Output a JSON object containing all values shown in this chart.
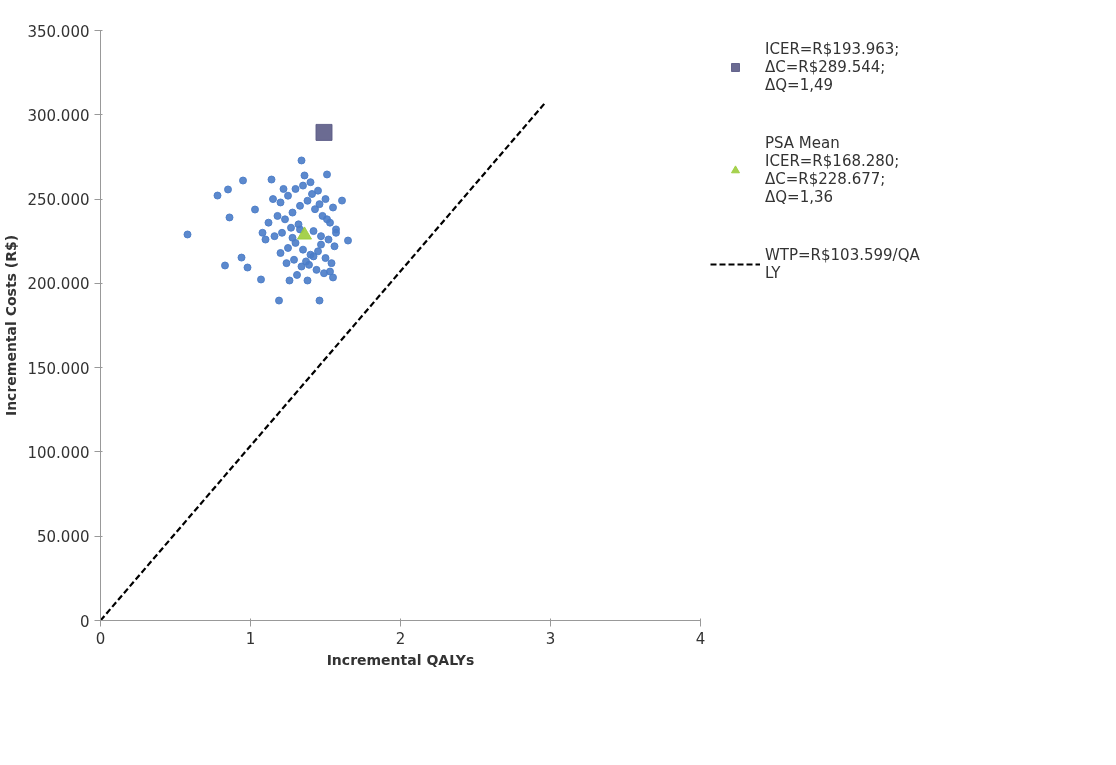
{
  "chart_data": {
    "type": "scatter",
    "xlabel": "Incremental QALYs",
    "ylabel": "Incremental Costs (R$)",
    "xlim": [
      0,
      4
    ],
    "xticks": [
      0,
      1,
      2,
      3,
      4
    ],
    "ylim": [
      0,
      350000
    ],
    "yticks": [
      {
        "value": 0,
        "label": "0"
      },
      {
        "value": 50000,
        "label": "50.000"
      },
      {
        "value": 100000,
        "label": "100.000"
      },
      {
        "value": 150000,
        "label": "150.000"
      },
      {
        "value": 200000,
        "label": "200.000"
      },
      {
        "value": 250000,
        "label": "250.000"
      },
      {
        "value": 300000,
        "label": "300.000"
      },
      {
        "value": 350000,
        "label": "350.000"
      }
    ],
    "grid": false,
    "legend": "right",
    "series": [
      {
        "type": "scatter",
        "marker": "circle",
        "color": "#4a7cc8",
        "x": [
          0.58,
          0.78,
          0.85,
          0.95,
          1.34,
          1.65,
          1.61,
          0.83,
          1.19,
          1.46,
          1.07,
          0.94,
          0.86,
          1.03,
          1.14,
          1.51,
          1.55,
          1.26,
          1.38,
          0.98,
          1.15,
          1.2,
          1.25,
          1.3,
          1.35,
          1.4,
          1.45,
          1.5,
          1.55,
          1.18,
          1.23,
          1.28,
          1.33,
          1.38,
          1.43,
          1.48,
          1.53,
          1.57,
          1.16,
          1.21,
          1.27,
          1.32,
          1.42,
          1.47,
          1.52,
          1.56,
          1.2,
          1.25,
          1.3,
          1.35,
          1.4,
          1.45,
          1.5,
          1.54,
          1.24,
          1.29,
          1.34,
          1.39,
          1.44,
          1.49,
          1.53,
          1.31,
          1.37,
          1.42,
          1.47,
          1.1,
          1.12,
          1.08,
          1.22,
          1.36,
          1.41,
          1.46,
          1.51,
          1.57,
          1.28,
          1.33
        ],
        "values": [
          229000,
          252100,
          255700,
          261000,
          272900,
          225400,
          249100,
          210600,
          189800,
          189800,
          202300,
          215300,
          239100,
          243800,
          261600,
          264600,
          203500,
          201700,
          201700,
          209400,
          250000,
          248000,
          252000,
          256000,
          258000,
          260000,
          255000,
          250000,
          245000,
          240000,
          238000,
          242000,
          246000,
          249000,
          244000,
          240000,
          236000,
          232000,
          228000,
          230000,
          233000,
          235000,
          231000,
          228000,
          226000,
          222000,
          218000,
          221000,
          224000,
          220000,
          217000,
          219000,
          215000,
          212000,
          212000,
          214000,
          210000,
          211000,
          208000,
          206000,
          207000,
          205000,
          213000,
          216000,
          223000,
          226000,
          236000,
          230000,
          256000,
          264000,
          253000,
          247000,
          238000,
          230000,
          227000,
          232000
        ]
      },
      {
        "type": "scatter",
        "marker": "square",
        "name": "ICER=R$193.963; ΔC=R$289.544; ΔQ=1,49",
        "color": "#5b5b86",
        "x": [
          1.49
        ],
        "values": [
          289544
        ]
      },
      {
        "type": "scatter",
        "marker": "triangle",
        "name": "PSA Mean ICER=R$168.280; ΔC=R$228.677; ΔQ=1,36",
        "color": "#9ccc3c",
        "x": [
          1.36
        ],
        "values": [
          228677
        ]
      },
      {
        "type": "line",
        "line_style": "dashed",
        "marker": "none",
        "name": "WTP=R$103.599/QALY",
        "color": "#000000",
        "x": [
          0,
          2.97
        ],
        "values": [
          0,
          307700
        ]
      }
    ]
  }
}
